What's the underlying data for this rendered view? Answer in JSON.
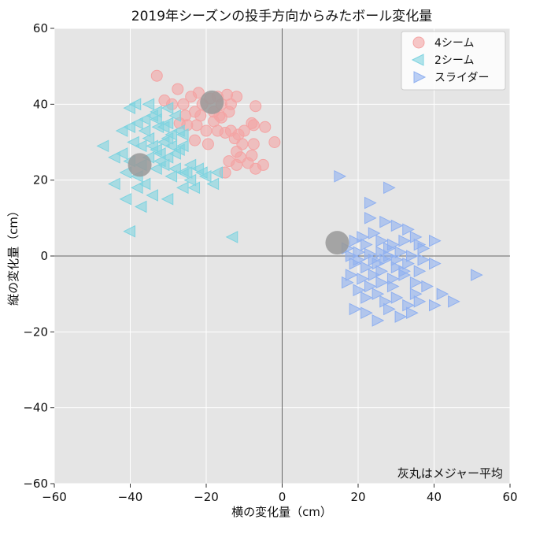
{
  "chart_data": {
    "type": "scatter",
    "title": "2019年シーズンの投手方向からみたボール変化量",
    "xlabel": "横の変化量（cm）",
    "ylabel": "縦の変化量（cm）",
    "xlim": [
      -60,
      60
    ],
    "ylim": [
      -60,
      60
    ],
    "xticks": [
      -60,
      -40,
      -20,
      0,
      20,
      40,
      60
    ],
    "yticks": [
      -60,
      -40,
      -20,
      0,
      20,
      40,
      60
    ],
    "xtick_labels": [
      "−60",
      "−40",
      "−20",
      "0",
      "20",
      "40",
      "60"
    ],
    "ytick_labels": [
      "−60",
      "−40",
      "−20",
      "0",
      "20",
      "40",
      "60"
    ],
    "grid": true,
    "legend_position": "top-right",
    "annotation": "灰丸はメジャー平均",
    "background_color": "#e5e5e5",
    "series": [
      {
        "name": "4シーム",
        "marker": "circle",
        "color": "#f4a4a4",
        "points": [
          [
            -33,
            47.5
          ],
          [
            -27.5,
            44
          ],
          [
            -24,
            42
          ],
          [
            -22,
            43
          ],
          [
            -21,
            40
          ],
          [
            -19,
            41.5
          ],
          [
            -17,
            42
          ],
          [
            -16,
            40
          ],
          [
            -14.5,
            42.5
          ],
          [
            -12,
            42
          ],
          [
            -31,
            41
          ],
          [
            -29,
            40
          ],
          [
            -26,
            40
          ],
          [
            -25.5,
            37
          ],
          [
            -23,
            38
          ],
          [
            -21.5,
            37
          ],
          [
            -18,
            38
          ],
          [
            -16,
            36.5
          ],
          [
            -14,
            38
          ],
          [
            -13.5,
            40
          ],
          [
            -7,
            39.5
          ],
          [
            -27,
            35
          ],
          [
            -25,
            34.5
          ],
          [
            -22.5,
            34.5
          ],
          [
            -18,
            35.5
          ],
          [
            -17,
            33
          ],
          [
            -15,
            32.5
          ],
          [
            -13.5,
            33
          ],
          [
            -11.5,
            32
          ],
          [
            -10,
            33
          ],
          [
            -7.5,
            34.5
          ],
          [
            -4.5,
            34
          ],
          [
            -23,
            30.5
          ],
          [
            -19.5,
            29.5
          ],
          [
            -12.5,
            31
          ],
          [
            -12,
            27.5
          ],
          [
            -11,
            26
          ],
          [
            -8,
            26.5
          ],
          [
            -9,
            24.5
          ],
          [
            -7,
            23
          ],
          [
            -5,
            24
          ],
          [
            -2,
            30
          ],
          [
            -7.5,
            29.5
          ],
          [
            -14,
            25
          ],
          [
            -15,
            22
          ],
          [
            -12,
            24
          ],
          [
            -10.5,
            29.5
          ],
          [
            -16.5,
            37
          ],
          [
            -8,
            35
          ],
          [
            -20,
            33
          ]
        ]
      },
      {
        "name": "2シーム",
        "marker": "triangle-left",
        "color": "#7ed3e0",
        "points": [
          [
            -40,
            39
          ],
          [
            -38.5,
            40
          ],
          [
            -35,
            40
          ],
          [
            -33,
            38
          ],
          [
            -30,
            39
          ],
          [
            -28,
            37
          ],
          [
            -42,
            33
          ],
          [
            -40,
            34
          ],
          [
            -38,
            35
          ],
          [
            -36,
            33
          ],
          [
            -34,
            37
          ],
          [
            -32.5,
            34
          ],
          [
            -30,
            35
          ],
          [
            -29,
            32
          ],
          [
            -27,
            33
          ],
          [
            -39,
            30
          ],
          [
            -37,
            29
          ],
          [
            -35,
            31
          ],
          [
            -33,
            28
          ],
          [
            -31,
            30
          ],
          [
            -29,
            29
          ],
          [
            -27,
            28
          ],
          [
            -47,
            29
          ],
          [
            -44,
            26
          ],
          [
            -42,
            27
          ],
          [
            -40,
            25
          ],
          [
            -37,
            24
          ],
          [
            -35,
            26
          ],
          [
            -32,
            25
          ],
          [
            -30,
            26
          ],
          [
            -28,
            27
          ],
          [
            -26,
            29
          ],
          [
            -41,
            22
          ],
          [
            -38,
            21
          ],
          [
            -36,
            19
          ],
          [
            -33,
            23
          ],
          [
            -31,
            24
          ],
          [
            -29,
            21
          ],
          [
            -26,
            22
          ],
          [
            -24,
            20
          ],
          [
            -22,
            23
          ],
          [
            -20,
            21
          ],
          [
            -18,
            19
          ],
          [
            -44,
            19
          ],
          [
            -41,
            15
          ],
          [
            -37,
            13
          ],
          [
            -34,
            16
          ],
          [
            -30,
            15
          ],
          [
            -26,
            18
          ],
          [
            -23,
            18
          ],
          [
            -21,
            22
          ],
          [
            -17,
            22
          ],
          [
            -13,
            5
          ],
          [
            -40,
            6.5
          ],
          [
            -38,
            18
          ],
          [
            -24,
            24
          ],
          [
            -25,
            22
          ],
          [
            -31,
            34
          ],
          [
            -33,
            36
          ],
          [
            -36,
            36
          ],
          [
            -28,
            23
          ],
          [
            -30,
            31
          ],
          [
            -32,
            27
          ],
          [
            -34,
            29
          ],
          [
            -26,
            32
          ]
        ]
      },
      {
        "name": "スライダー",
        "marker": "triangle-right",
        "color": "#8fb0f0",
        "points": [
          [
            15,
            21
          ],
          [
            28,
            18
          ],
          [
            23,
            14
          ],
          [
            23,
            10
          ],
          [
            27,
            9
          ],
          [
            30,
            8
          ],
          [
            33,
            7
          ],
          [
            35,
            5
          ],
          [
            24,
            6
          ],
          [
            21,
            5
          ],
          [
            19,
            4
          ],
          [
            22,
            3
          ],
          [
            26,
            4
          ],
          [
            29,
            3
          ],
          [
            32,
            4
          ],
          [
            36,
            3
          ],
          [
            40,
            4
          ],
          [
            17,
            2
          ],
          [
            20,
            1
          ],
          [
            23,
            0.5
          ],
          [
            26,
            1
          ],
          [
            28,
            0
          ],
          [
            31,
            1
          ],
          [
            34,
            0
          ],
          [
            37,
            -1
          ],
          [
            19,
            -2
          ],
          [
            22,
            -3
          ],
          [
            25,
            -2
          ],
          [
            27,
            -1
          ],
          [
            30,
            -3
          ],
          [
            33,
            -2
          ],
          [
            36,
            -4
          ],
          [
            18,
            -5
          ],
          [
            21,
            -6
          ],
          [
            24,
            -5
          ],
          [
            26,
            -7
          ],
          [
            29,
            -6
          ],
          [
            32,
            -5
          ],
          [
            35,
            -7
          ],
          [
            38,
            -8
          ],
          [
            20,
            -9
          ],
          [
            23,
            -8
          ],
          [
            25,
            -10
          ],
          [
            27,
            -12
          ],
          [
            30,
            -11
          ],
          [
            33,
            -13
          ],
          [
            36,
            -12
          ],
          [
            19,
            -14
          ],
          [
            22,
            -15
          ],
          [
            25,
            -17
          ],
          [
            28,
            -14
          ],
          [
            31,
            -16
          ],
          [
            34,
            -15
          ],
          [
            40,
            -13
          ],
          [
            45,
            -12
          ],
          [
            51,
            -5
          ],
          [
            42,
            -10
          ],
          [
            18,
            0
          ],
          [
            24,
            -1
          ],
          [
            28,
            2
          ],
          [
            30,
            -1
          ],
          [
            32,
            -4
          ],
          [
            26,
            -4
          ],
          [
            20,
            -1
          ],
          [
            37,
            2
          ],
          [
            40,
            -2
          ],
          [
            29,
            -8
          ],
          [
            35,
            -10
          ],
          [
            22,
            -11
          ],
          [
            17,
            -7
          ]
        ]
      }
    ],
    "mlb_average": {
      "color": "#999999",
      "points": [
        [
          -18.5,
          40.5
        ],
        [
          -37.5,
          24
        ],
        [
          14.5,
          3.5
        ]
      ]
    }
  }
}
